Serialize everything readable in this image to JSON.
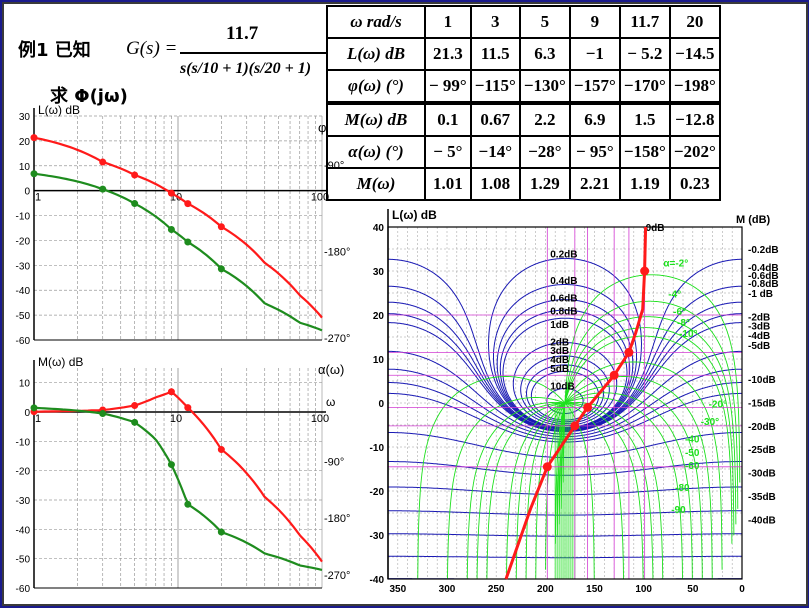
{
  "formula": {
    "title": "例1 已知",
    "lhs": "G(s) =",
    "numerator": "11.7",
    "denominator": "s(s/10 + 1)(s/20 + 1)",
    "ask": "求 Φ(jω)"
  },
  "table": {
    "rows": [
      {
        "label": "ω  rad/s",
        "values": [
          "1",
          "3",
          "5",
          "9",
          "11.7",
          "20"
        ]
      },
      {
        "label": "L(ω)  dB",
        "values": [
          "21.3",
          "11.5",
          "6.3",
          "−1",
          "− 5.2",
          "−14.5"
        ]
      },
      {
        "label": "φ(ω)  (°)",
        "values": [
          "− 99°",
          "−115°",
          "−130°",
          "−157°",
          "−170°",
          "−198°"
        ]
      },
      {
        "label": "M(ω)  dB",
        "values": [
          "0.1",
          "0.67",
          "2.2",
          "6.9",
          "1.5",
          "−12.8"
        ]
      },
      {
        "label": "α(ω)  (°)",
        "values": [
          "− 5°",
          "−14°",
          "−28°",
          "− 95°",
          "−158°",
          "−202°"
        ]
      },
      {
        "label": "M(ω)",
        "values": [
          "1.01",
          "1.08",
          "1.29",
          "2.21",
          "1.19",
          "0.23"
        ]
      }
    ]
  },
  "colors": {
    "magnitude": "#ff1a1a",
    "phase": "#1e8c1e",
    "grid": "#9a9a9a",
    "nichols_grid": "#1ee01e",
    "nichols_mdb": "#1a1ab4",
    "nichols_highlight": "#d23cd2"
  },
  "chart_data": [
    {
      "type": "line",
      "ylabel": "L(ω) dB",
      "ylabel_right": "φ",
      "xscale": "log",
      "xlim": [
        1,
        100
      ],
      "ylim": [
        -60,
        30
      ],
      "x_ticks": [
        "1",
        "10",
        "100"
      ],
      "y_ticks": [
        "30",
        "20",
        "10",
        "0",
        "-10",
        "-20",
        "-30",
        "-40",
        "-50",
        "-60"
      ],
      "right_ticks": [
        "-90°",
        "-180°",
        "-270°"
      ],
      "series": [
        {
          "x": [
            1,
            3,
            5,
            9,
            11.7,
            20,
            40,
            70,
            100
          ],
          "values": [
            21.3,
            11.5,
            6.3,
            -1,
            -5.2,
            -14.5,
            -29,
            -42,
            -51
          ],
          "markers": [
            1,
            3,
            5,
            9,
            11.7,
            20
          ]
        },
        {
          "x": [
            1,
            3,
            5,
            9,
            11.7,
            20,
            40,
            70,
            100
          ],
          "values": [
            -99,
            -115,
            -130,
            -157,
            -170,
            -198,
            -234,
            -254,
            -262
          ],
          "markers": [
            1,
            3,
            5,
            9,
            11.7,
            20
          ]
        }
      ]
    },
    {
      "type": "line",
      "ylabel": "M(ω) dB",
      "ylabel_right": "α(ω)",
      "xlabel": "ω",
      "xscale": "log",
      "xlim": [
        1,
        100
      ],
      "ylim": [
        -60,
        15
      ],
      "x_ticks": [
        "1",
        "10",
        "100"
      ],
      "y_ticks": [
        "10",
        "0",
        "-10",
        "-20",
        "-30",
        "-40",
        "-50",
        "-60"
      ],
      "right_ticks": [
        "-90°",
        "-180°",
        "-270°"
      ],
      "series": [
        {
          "x": [
            1,
            3,
            5,
            7,
            9,
            11.7,
            20,
            40,
            70,
            100
          ],
          "values": [
            0.1,
            0.67,
            2.2,
            5,
            6.9,
            1.5,
            -12.8,
            -29,
            -42,
            -51
          ],
          "markers": [
            1,
            3,
            5,
            9,
            11.7,
            20
          ]
        },
        {
          "x": [
            1,
            3,
            5,
            7,
            9,
            11.7,
            20,
            40,
            70,
            100
          ],
          "values": [
            -5,
            -14,
            -28,
            -55,
            -95,
            -158,
            -202,
            -236,
            -255,
            -262
          ],
          "markers": [
            1,
            3,
            5,
            9,
            11.7,
            20
          ]
        }
      ]
    },
    {
      "type": "line",
      "ylabel": "L(ω)  dB",
      "ylabel_right": "M (dB)",
      "xlim": [
        360,
        0
      ],
      "ylim": [
        -40,
        40
      ],
      "x_ticks": [
        "350",
        "300",
        "250",
        "200",
        "150",
        "100",
        "50",
        "0"
      ],
      "y_ticks": [
        "40",
        "30",
        "20",
        "10",
        "0",
        "-10",
        "-20",
        "-30",
        "-40"
      ],
      "m_labels_right": [
        "-0.2dB",
        "-0.4dB",
        "-0.6dB",
        "-0.8dB",
        "-1 dB",
        "-2dB",
        "-3dB",
        "-4dB",
        "-5dB",
        "-10dB",
        "-15dB",
        "-20dB",
        "-25dB",
        "-30dB",
        "-35dB",
        "-40dB"
      ],
      "m_labels_inner": [
        "0dB",
        "0.2dB",
        "0.4dB",
        "0.6dB",
        "0.8dB",
        "1dB",
        "2dB",
        "3dB",
        "4dB",
        "5dB",
        "10dB"
      ],
      "alpha_labels": [
        "α=-2°",
        "-4°",
        "-6°",
        "-8°",
        "-10°",
        "-20°",
        "-30°",
        "-40",
        "-50",
        "-60",
        "-80",
        "-90"
      ],
      "series": [
        {
          "x": [
            98,
            99,
            101,
            108,
            115,
            130,
            157,
            170,
            198,
            215,
            240
          ],
          "values": [
            40,
            30,
            21.3,
            16,
            11.5,
            6.3,
            -1,
            -5.2,
            -14.5,
            -24,
            -40
          ],
          "markers": [
            99,
            115,
            130,
            157,
            170,
            198
          ]
        }
      ]
    }
  ]
}
